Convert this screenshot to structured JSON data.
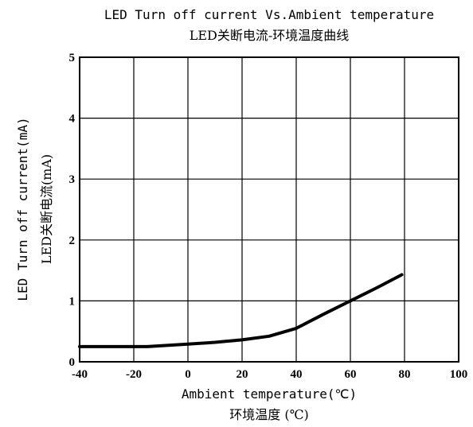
{
  "chart_data": {
    "type": "line",
    "title": "LED Turn off current Vs.Ambient temperature",
    "subtitle": "LED关断电流-环境温度曲线",
    "xlabel": "Ambient temperature(℃)",
    "xlabel_cn": "环境温度 (℃)",
    "ylabel": "LED Turn off current(mA)",
    "ylabel_cn": "LED关断电流(mA)",
    "xlim": [
      -40,
      100
    ],
    "ylim": [
      0,
      5
    ],
    "xticks": [
      "-40",
      "-20",
      "0",
      "20",
      "40",
      "60",
      "80",
      "100"
    ],
    "yticks": [
      "0",
      "1",
      "2",
      "3",
      "4",
      "5"
    ],
    "grid": true,
    "series": [
      {
        "x": [
          -40,
          -30,
          -15,
          0,
          10,
          20,
          30,
          40,
          50,
          60,
          70,
          79
        ],
        "y": [
          0.25,
          0.25,
          0.25,
          0.29,
          0.32,
          0.36,
          0.42,
          0.55,
          0.78,
          1.0,
          1.22,
          1.43
        ]
      }
    ]
  }
}
